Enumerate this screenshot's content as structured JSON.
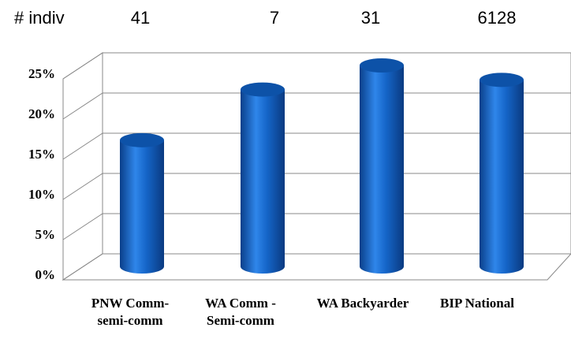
{
  "chart_data": {
    "type": "bar3d",
    "counts_label": "# indiv",
    "counts": [
      41,
      7,
      31,
      6128
    ],
    "categories": [
      "PNW Comm-semi-comm",
      "WA Comm - Semi-comm",
      "WA Backyarder",
      "BIP National"
    ],
    "values": [
      15.7,
      22,
      25,
      23.2
    ],
    "color": "#1565c8",
    "ylim": [
      0,
      25
    ],
    "yticks": [
      {
        "value": 0,
        "label": "0%"
      },
      {
        "value": 5,
        "label": "5%"
      },
      {
        "value": 10,
        "label": "10%"
      },
      {
        "value": 15,
        "label": "15%"
      },
      {
        "value": 20,
        "label": "20%"
      },
      {
        "value": 25,
        "label": "25%"
      }
    ],
    "grid": true
  }
}
